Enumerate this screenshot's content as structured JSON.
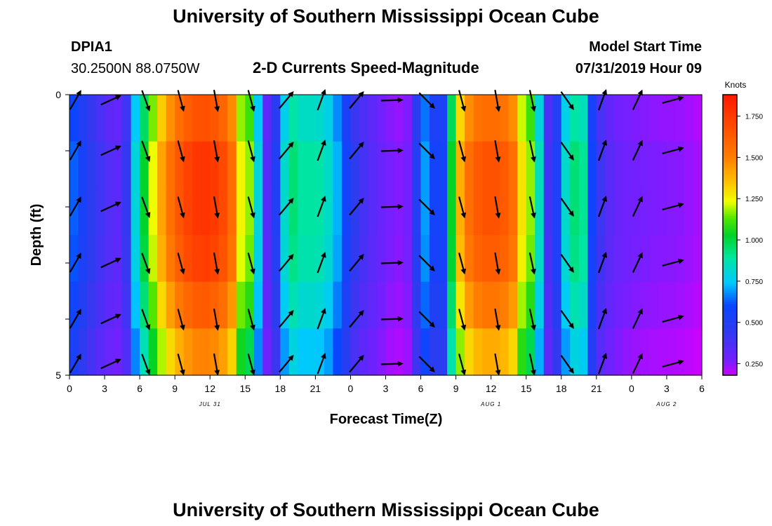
{
  "page": {
    "title_top": "University of Southern Mississippi Ocean Cube",
    "title_bottom": "University of Southern Mississippi Ocean Cube",
    "station_id": "DPIA1",
    "station_location": "30.2500N 88.0750W",
    "plot_title": "2-D Currents Speed-Magnitude",
    "model_start_label": "Model Start Time",
    "model_start_value": "07/31/2019 Hour 09"
  },
  "chart_data": {
    "type": "heatmap",
    "title": "2-D Currents Speed-Magnitude",
    "xlabel": "Forecast Time(Z)",
    "ylabel": "Depth (ft)",
    "x_ticks": [
      "0",
      "3",
      "6",
      "9",
      "12",
      "15",
      "18",
      "21",
      "0",
      "3",
      "6",
      "9",
      "12",
      "15",
      "18",
      "21",
      "0",
      "3",
      "6"
    ],
    "x_hours_range": [
      0,
      54
    ],
    "date_labels": [
      {
        "hour": 12,
        "text": "JUL 31"
      },
      {
        "hour": 36,
        "text": "AUG 1"
      },
      {
        "hour": 51,
        "text": "AUG 2"
      }
    ],
    "y_ticks": [
      "0",
      "5"
    ],
    "ylim": [
      0,
      5
    ],
    "colorbar": {
      "unit": "Knots",
      "range": [
        0.18,
        1.88
      ],
      "ticks": [
        "0.250",
        "0.500",
        "0.750",
        "1.000",
        "1.250",
        "1.500",
        "1.750"
      ],
      "tick_values": [
        0.25,
        0.5,
        0.75,
        1.0,
        1.25,
        1.5,
        1.75
      ]
    },
    "speed_profile_knots": [
      {
        "hour": 0.0,
        "speed": 0.72
      },
      {
        "hour": 0.5,
        "speed": 0.6
      },
      {
        "hour": 1.0,
        "speed": 0.55
      },
      {
        "hour": 2.0,
        "speed": 0.45
      },
      {
        "hour": 3.0,
        "speed": 0.38
      },
      {
        "hour": 4.0,
        "speed": 0.32
      },
      {
        "hour": 5.0,
        "speed": 0.45
      },
      {
        "hour": 5.5,
        "speed": 0.75
      },
      {
        "hour": 6.0,
        "speed": 0.95
      },
      {
        "hour": 6.5,
        "speed": 1.05
      },
      {
        "hour": 7.0,
        "speed": 1.2
      },
      {
        "hour": 8.0,
        "speed": 1.45
      },
      {
        "hour": 9.0,
        "speed": 1.62
      },
      {
        "hour": 10.0,
        "speed": 1.72
      },
      {
        "hour": 11.0,
        "speed": 1.78
      },
      {
        "hour": 12.0,
        "speed": 1.78
      },
      {
        "hour": 13.0,
        "speed": 1.72
      },
      {
        "hour": 14.0,
        "speed": 1.55
      },
      {
        "hour": 14.5,
        "speed": 1.3
      },
      {
        "hour": 15.0,
        "speed": 1.1
      },
      {
        "hour": 15.5,
        "speed": 1.2
      },
      {
        "hour": 16.0,
        "speed": 0.9
      },
      {
        "hour": 16.5,
        "speed": 0.5
      },
      {
        "hour": 17.0,
        "speed": 0.3
      },
      {
        "hour": 17.5,
        "speed": 0.42
      },
      {
        "hour": 18.0,
        "speed": 0.75
      },
      {
        "hour": 19.0,
        "speed": 0.95
      },
      {
        "hour": 20.0,
        "speed": 0.88
      },
      {
        "hour": 21.0,
        "speed": 0.9
      },
      {
        "hour": 22.0,
        "speed": 0.85
      },
      {
        "hour": 23.0,
        "speed": 0.7
      },
      {
        "hour": 24.0,
        "speed": 0.48
      },
      {
        "hour": 25.0,
        "speed": 0.4
      },
      {
        "hour": 26.0,
        "speed": 0.34
      },
      {
        "hour": 27.0,
        "speed": 0.28
      },
      {
        "hour": 28.0,
        "speed": 0.25
      },
      {
        "hour": 29.0,
        "speed": 0.28
      },
      {
        "hour": 29.5,
        "speed": 0.45
      },
      {
        "hour": 30.0,
        "speed": 0.62
      },
      {
        "hour": 30.5,
        "speed": 0.72
      },
      {
        "hour": 31.0,
        "speed": 0.6
      },
      {
        "hour": 31.5,
        "speed": 0.42
      },
      {
        "hour": 32.0,
        "speed": 0.6
      },
      {
        "hour": 32.5,
        "speed": 0.95
      },
      {
        "hour": 33.0,
        "speed": 1.3
      },
      {
        "hour": 34.0,
        "speed": 1.55
      },
      {
        "hour": 35.0,
        "speed": 1.65
      },
      {
        "hour": 36.0,
        "speed": 1.68
      },
      {
        "hour": 37.0,
        "speed": 1.65
      },
      {
        "hour": 38.0,
        "speed": 1.55
      },
      {
        "hour": 38.5,
        "speed": 1.35
      },
      {
        "hour": 39.0,
        "speed": 1.1
      },
      {
        "hour": 39.5,
        "speed": 1.2
      },
      {
        "hour": 40.0,
        "speed": 0.95
      },
      {
        "hour": 40.5,
        "speed": 0.55
      },
      {
        "hour": 41.0,
        "speed": 0.35
      },
      {
        "hour": 41.5,
        "speed": 0.45
      },
      {
        "hour": 42.0,
        "speed": 0.75
      },
      {
        "hour": 43.0,
        "speed": 0.95
      },
      {
        "hour": 44.0,
        "speed": 0.9
      },
      {
        "hour": 44.5,
        "speed": 0.62
      },
      {
        "hour": 45.0,
        "speed": 0.45
      },
      {
        "hour": 46.0,
        "speed": 0.35
      },
      {
        "hour": 47.0,
        "speed": 0.3
      },
      {
        "hour": 48.0,
        "speed": 0.28
      },
      {
        "hour": 50.0,
        "speed": 0.26
      },
      {
        "hour": 52.0,
        "speed": 0.25
      },
      {
        "hour": 54.0,
        "speed": 0.22
      }
    ],
    "depth_rows_speed_factor": [
      0.94,
      1.0,
      1.0,
      0.98,
      0.92,
      0.84
    ],
    "vector_columns_hours": [
      0.5,
      3.5,
      6.5,
      9.5,
      12.5,
      15.5,
      18.5,
      21.5,
      24.5,
      27.5,
      30.5,
      33.5,
      36.5,
      39.5,
      42.5,
      45.5,
      48.5,
      51.5
    ],
    "vector_directions_deg": [
      30,
      65,
      160,
      165,
      170,
      165,
      40,
      20,
      40,
      88,
      135,
      165,
      170,
      168,
      145,
      20,
      25,
      75
    ],
    "vector_rows_depth_ft": [
      0.1,
      1.0,
      2.0,
      3.0,
      4.0,
      4.8
    ]
  }
}
